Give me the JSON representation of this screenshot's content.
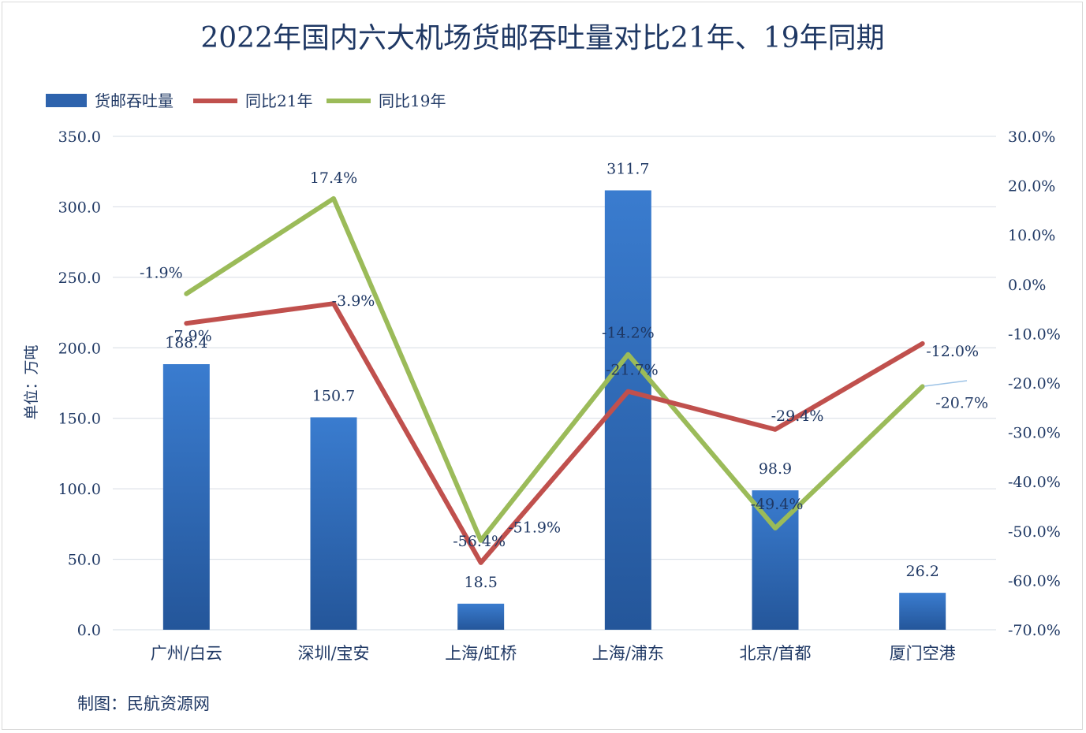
{
  "chart_data": {
    "type": "bar",
    "title": "2022年国内六大机场货邮吞吐量对比21年、19年同期",
    "categories": [
      "广州/白云",
      "深圳/宝安",
      "上海/虹桥",
      "上海/浦东",
      "北京/首都",
      "厦门空港"
    ],
    "series": [
      {
        "name": "货邮吞吐量",
        "type": "bar",
        "axis": "left",
        "color": "#2e63ad",
        "values": [
          188.4,
          150.7,
          18.5,
          311.7,
          98.9,
          26.2
        ],
        "labels": [
          "188.4",
          "150.7",
          "18.5",
          "311.7",
          "98.9",
          "26.2"
        ]
      },
      {
        "name": "同比21年",
        "type": "line",
        "axis": "right",
        "color": "#c0504d",
        "values": [
          -7.9,
          -3.9,
          -56.4,
          -21.7,
          -29.4,
          -12.0
        ],
        "labels": [
          "-7.9%",
          "-3.9%",
          "-56.4%",
          "-21.7%",
          "-29.4%",
          "-12.0%"
        ]
      },
      {
        "name": "同比19年",
        "type": "line",
        "axis": "right",
        "color": "#9bbb59",
        "values": [
          -1.9,
          17.4,
          -51.9,
          -14.2,
          -49.4,
          -20.7
        ],
        "labels": [
          "-1.9%",
          "17.4%",
          "-51.9%",
          "-14.2%",
          "-49.4%",
          "-20.7%"
        ]
      }
    ],
    "ylabel": "单位：万吨",
    "ylim": [
      0,
      350
    ],
    "yticks": [
      "0.0",
      "50.0",
      "100.0",
      "150.0",
      "200.0",
      "250.0",
      "300.0",
      "350.0"
    ],
    "y2lim": [
      -70,
      30
    ],
    "y2ticks": [
      "-70.0%",
      "-60.0%",
      "-50.0%",
      "-40.0%",
      "-30.0%",
      "-20.0%",
      "-10.0%",
      "0.0%",
      "10.0%",
      "20.0%",
      "30.0%"
    ],
    "grid": true,
    "legend": "top-left"
  },
  "source": "制图：民航资源网"
}
